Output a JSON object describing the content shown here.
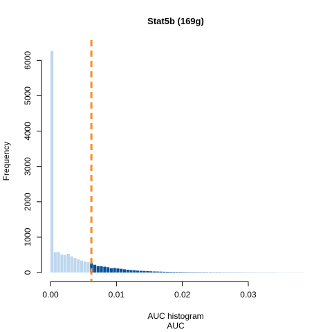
{
  "chart_data": {
    "type": "bar",
    "title": "Stat5b (169g)",
    "xlabel_line1": "AUC histogram",
    "xlabel_line2": "AUC",
    "ylabel": "Frequency",
    "xlim": [
      0,
      0.0385
    ],
    "ylim": [
      0,
      6300
    ],
    "x_ticks": [
      {
        "value": 0.0,
        "label": "0.00"
      },
      {
        "value": 0.01,
        "label": "0.01"
      },
      {
        "value": 0.02,
        "label": "0.02"
      },
      {
        "value": 0.03,
        "label": "0.03"
      }
    ],
    "y_ticks": [
      {
        "value": 0,
        "label": "0"
      },
      {
        "value": 1000,
        "label": "1000"
      },
      {
        "value": 2000,
        "label": "2000"
      },
      {
        "value": 3000,
        "label": "3000"
      },
      {
        "value": 4000,
        "label": "4000"
      },
      {
        "value": 5000,
        "label": "5000"
      },
      {
        "value": 6000,
        "label": "6000"
      }
    ],
    "bin_width": 0.0005,
    "bin_start": 0,
    "values": [
      6270,
      575,
      580,
      510,
      500,
      530,
      460,
      410,
      370,
      340,
      310,
      290,
      280,
      220,
      180,
      175,
      165,
      150,
      120,
      130,
      115,
      105,
      90,
      80,
      70,
      65,
      55,
      50,
      45,
      40,
      35,
      30,
      28,
      25,
      22,
      20,
      18,
      16,
      15,
      14,
      13,
      12,
      11,
      10,
      10,
      9,
      9,
      8,
      8,
      7,
      7,
      7,
      6,
      6,
      6,
      5,
      5,
      5,
      5,
      4,
      4,
      4,
      4,
      3,
      3,
      3,
      3,
      3,
      3,
      2,
      2,
      2,
      2,
      2,
      2,
      2,
      2
    ],
    "threshold": 0.0062,
    "colors": {
      "below_threshold": "#bdd7ee",
      "above_threshold": "#08519c",
      "threshold_line": "#ff8c1a",
      "axis": "#000000"
    }
  }
}
